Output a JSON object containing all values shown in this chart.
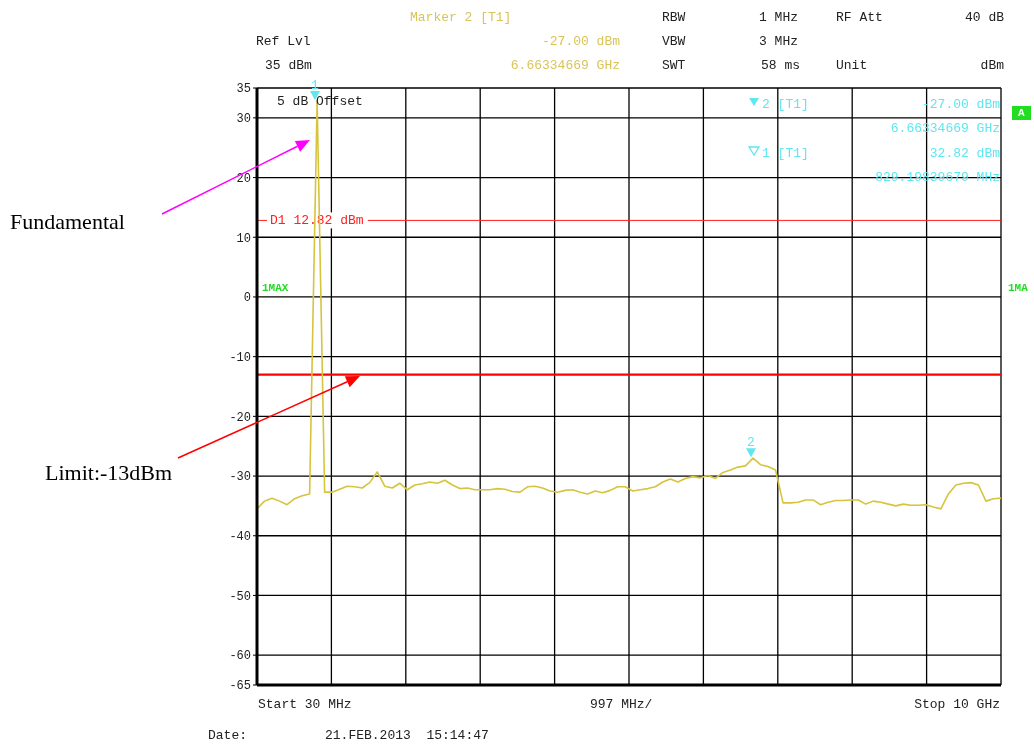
{
  "chart_data": {
    "type": "line",
    "categories": [
      null,
      null,
      null,
      null,
      null,
      null,
      null,
      null,
      null,
      null,
      null,
      null,
      null,
      null,
      null,
      null,
      null,
      null,
      null,
      null,
      null,
      null,
      null,
      null,
      null,
      null,
      null,
      null,
      null,
      null,
      null,
      null,
      null,
      null,
      null,
      null,
      null,
      null,
      null,
      null,
      null,
      null,
      null,
      null,
      null,
      null,
      null,
      null,
      null,
      null,
      null,
      null,
      null,
      null,
      null,
      null,
      null,
      null,
      null,
      null,
      null,
      null,
      null,
      null,
      null,
      null,
      null,
      null,
      null,
      null,
      null,
      null,
      null,
      null,
      null,
      null,
      null,
      null,
      null,
      null,
      null,
      null,
      null,
      null,
      null,
      null,
      null,
      null,
      null,
      null,
      null,
      null,
      null,
      null,
      null,
      null,
      null,
      null,
      null,
      null
    ],
    "series": [
      {
        "color": "#d6c43c",
        "values": [
          -35.5,
          -34.2,
          -33.7,
          -34.2,
          -34.8,
          -33.8,
          -33.3,
          -33.0,
          32.82,
          -32.7,
          -32.7,
          -32.2,
          -31.7,
          -31.8,
          -32.0,
          -31.1,
          -29.3,
          -31.7,
          -32.0,
          -31.2,
          -32.3,
          -31.5,
          -31.3,
          -31.0,
          -31.2,
          -30.7,
          -31.5,
          -32.1,
          -32.0,
          -32.3,
          -32.3,
          -32.3,
          -32.1,
          -32.2,
          -32.6,
          -32.7,
          -31.8,
          -31.7,
          -32.0,
          -32.5,
          -32.7,
          -32.4,
          -32.3,
          -32.7,
          -33.0,
          -32.5,
          -32.8,
          -32.4,
          -31.8,
          -31.8,
          -32.5,
          -32.3,
          -32.1,
          -31.8,
          -31.0,
          -30.5,
          -31.0,
          -30.4,
          -30.1,
          -30.3,
          -29.9,
          -30.4,
          -29.4,
          -29.0,
          -28.5,
          -28.3,
          -27.0,
          -28.1,
          -28.4,
          -29.0,
          -34.5,
          -34.5,
          -34.4,
          -34.0,
          -34.0,
          -34.8,
          -34.4,
          -34.1,
          -34.1,
          -34.0,
          -34.0,
          -34.7,
          -34.2,
          -34.4,
          -34.7,
          -35.0,
          -34.7,
          -34.9,
          -34.9,
          -34.8,
          -35.2,
          -35.5,
          -33.0,
          -31.5,
          -31.2,
          -31.1,
          -31.5,
          -34.2,
          -33.8,
          -33.7
        ]
      }
    ],
    "ylim": [
      -65,
      35
    ],
    "yticks": [
      35,
      30,
      20,
      10,
      0,
      -10,
      -20,
      -30,
      -40,
      -50,
      -60,
      -65
    ],
    "tick_labels": "y",
    "grid": true,
    "marker": "none",
    "line_style": "solid",
    "ref_lines": [
      {
        "axis": "y",
        "value": 12.82,
        "label": "D1 12.82 dBm",
        "color": "#ff2020"
      },
      {
        "axis": "y",
        "value": -13,
        "color": "#ff0000"
      }
    ],
    "annotations": [
      "Marker 2 [T1]",
      "Ref Lvl",
      "-27.00 dBm",
      "35 dBm",
      "6.66334669 GHz",
      "RBW",
      "1 MHz",
      "VBW",
      "3 MHz",
      "SWT",
      "58 ms",
      "RF Att",
      "40 dB",
      "Unit",
      "dBm",
      "5 dB Offset",
      "2 [T1]",
      "-27.00 dBm",
      "6.66334669 GHz",
      "1 [T1]",
      "32.82 dBm",
      "829.19839679 MHz",
      "1MAX",
      "1MA",
      "A",
      "Start 30 MHz",
      "997 MHz/",
      "Stop 10 GHz",
      "Date:",
      "21.FEB.2013  15:14:47",
      "Fundamental",
      "Limit:-13dBm",
      {
        "text": "1",
        "y": 32.82
      },
      {
        "text": "2",
        "y": -27
      }
    ]
  }
}
